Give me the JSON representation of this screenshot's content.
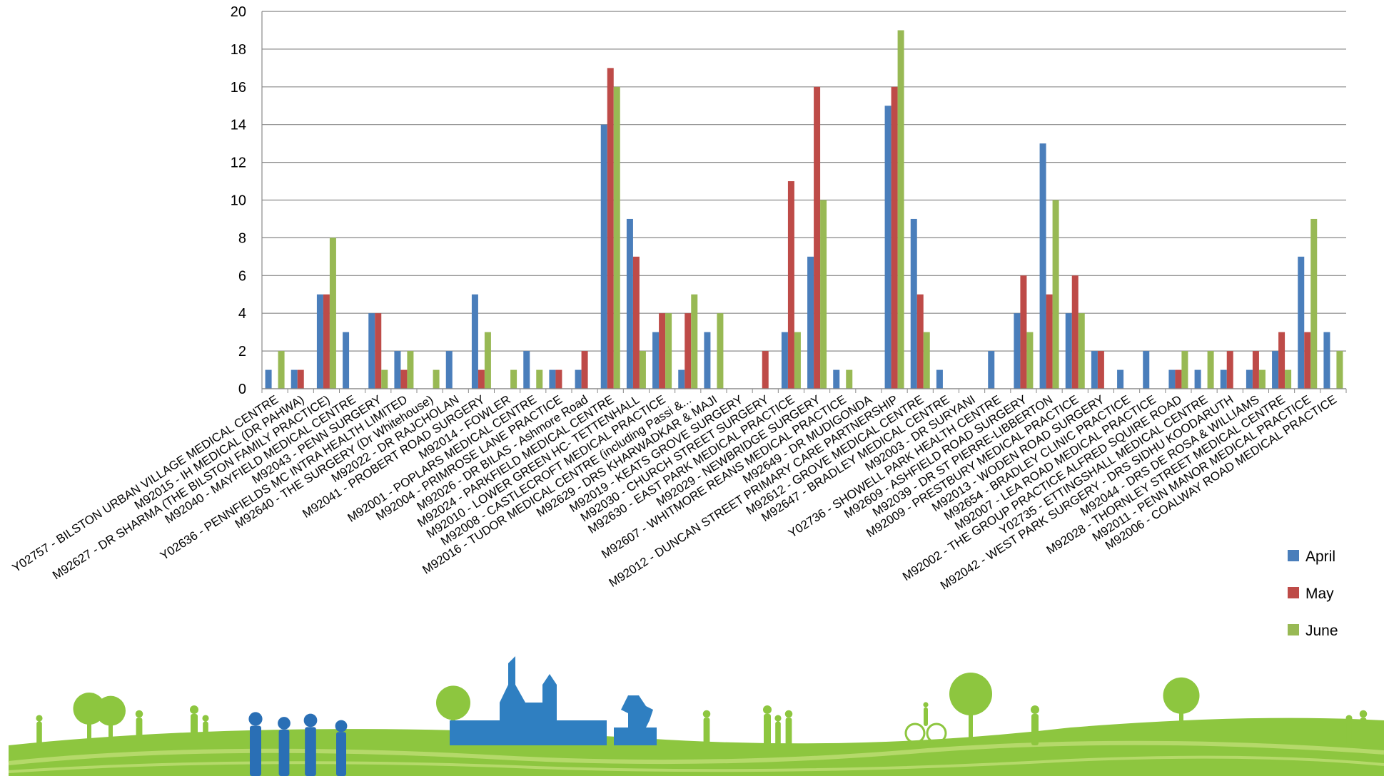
{
  "chart_data": {
    "type": "bar",
    "title": "",
    "xlabel": "",
    "ylabel": "",
    "ylim": [
      0,
      20
    ],
    "yticks": [
      0,
      2,
      4,
      6,
      8,
      10,
      12,
      14,
      16,
      18,
      20
    ],
    "grid": "horizontal",
    "legend_position": "right",
    "colors": {
      "April": "#4a7ebb",
      "May": "#be4b48",
      "June": "#98b954"
    },
    "categories": [
      "Y02757 - BILSTON URBAN VILLAGE MEDICAL CENTRE",
      "M92015 - IH MEDICAL (DR PAHWA)",
      "M92627 - DR SHARMA (THE BILSTON FAMILY PRACTICE)",
      "M92040 - MAYFIELD MEDICAL CENTRE",
      "M92043 - PENN SURGERY",
      "Y02636 - PENNFIELDS MC INTRA HEALTH LIMITED",
      "M92640 - THE SURGERY (Dr Whitehouse)",
      "M92022 - DR RAJCHOLAN",
      "M92041 - PROBERT ROAD SURGERY",
      "M92014 - FOWLER",
      "M92001 - POPLARS MEDICAL CENTRE",
      "M92004 - PRIMROSE LANE PRACTICE",
      "M92026 - DR BILAS - Ashmore Road",
      "M92024 - PARKFIELD MEDICAL CENTRE",
      "M92010 - LOWER GREEN HC- TETTENHALL",
      "M92008 - CASTLECROFT MEDICAL PRACTICE",
      "M92016 - TUDOR MEDICAL CENTRE (including Passi &...",
      "M92629 - DRS KHARWADKAR & MAJI",
      "M92019 - KEATS GROVE SURGERY",
      "M92030 - CHURCH STREET SURGERY",
      "M92630 - EAST PARK MEDICAL PRACTICE",
      "M92029 - NEWBRIDGE SURGERY",
      "M92607 - WHITMORE REANS MEDICAL PRACTICE",
      "M92649 - DR MUDIGONDA",
      "M92012 - DUNCAN STREET PRIMARY CARE PARTNERSHIP",
      "M92612 - GROVE MEDICAL CENTRE",
      "M92647 - BRADLEY MEDICAL CENTRE",
      "M92003 - DR SURYANI",
      "Y02736 - SHOWELL PARK HEALTH CENTRE",
      "M92609 - ASHFIELD ROAD SURGERY",
      "M92039 - DR ST PIERRE-LIBBERTON",
      "M92009 - PRESTBURY MEDICAL PRACTICE",
      "M92013 - WODEN ROAD SURGERY",
      "M92654 - BRADLEY CLINIC PRACTICE",
      "M92007 - LEA ROAD MEDICAL PRACTICE",
      "M92002 - THE GROUP PRACTICE ALFRED SQUIRE ROAD",
      "Y02735 - ETTINGSHALL MEDICAL CENTRE",
      "M92042 - WEST PARK SURGERY - DRS SIDHU KOODARUTH",
      "M92044 - DRS DE ROSA & WILLIAMS",
      "M92028 - THORNLEY STREET MEDICAL CENTRE",
      "M92011 - PENN MANOR MEDICAL PRACTICE",
      "M92006 - COALWAY ROAD MEDICAL PRACTICE"
    ],
    "series": [
      {
        "name": "April",
        "values": [
          1,
          1,
          5,
          3,
          4,
          2,
          0,
          2,
          5,
          0,
          2,
          1,
          1,
          14,
          9,
          3,
          1,
          3,
          0,
          0,
          3,
          7,
          1,
          0,
          15,
          9,
          1,
          0,
          2,
          4,
          13,
          4,
          2,
          1,
          2,
          1,
          1,
          1,
          1,
          2,
          7,
          3
        ]
      },
      {
        "name": "May",
        "values": [
          0,
          1,
          5,
          0,
          4,
          1,
          0,
          0,
          1,
          0,
          0,
          1,
          2,
          17,
          7,
          4,
          4,
          0,
          0,
          2,
          11,
          16,
          0,
          0,
          16,
          5,
          0,
          0,
          0,
          6,
          5,
          6,
          2,
          0,
          0,
          1,
          0,
          2,
          2,
          3,
          3,
          0
        ]
      },
      {
        "name": "June",
        "values": [
          2,
          0,
          8,
          0,
          1,
          2,
          1,
          0,
          3,
          1,
          1,
          0,
          0,
          16,
          2,
          4,
          5,
          4,
          0,
          0,
          3,
          10,
          1,
          0,
          19,
          3,
          0,
          0,
          0,
          3,
          10,
          4,
          0,
          0,
          0,
          2,
          2,
          0,
          1,
          1,
          9,
          2
        ]
      }
    ]
  },
  "decoration": {
    "banner": "landscape-silhouettes",
    "colors": {
      "grass": "#8dc63f",
      "grass_light": "#b5d96a",
      "tree": "#8dc63f",
      "people": "#2a6fb5",
      "building": "#2f7fc1"
    }
  }
}
